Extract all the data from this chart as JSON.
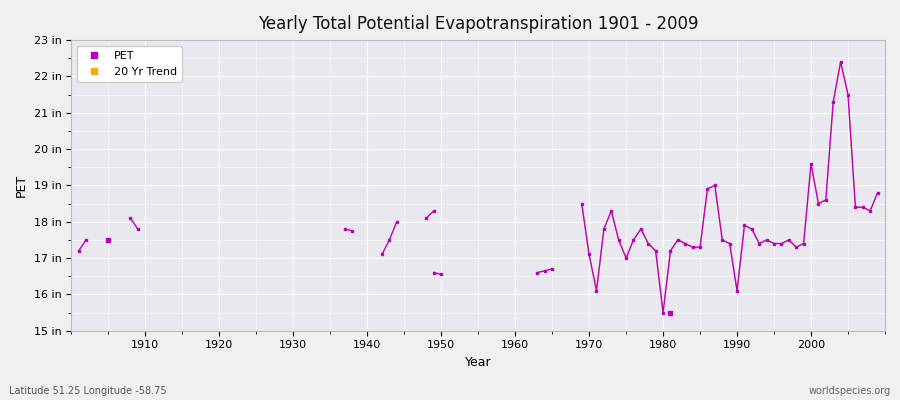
{
  "title": "Yearly Total Potential Evapotranspiration 1901 - 2009",
  "xlabel": "Year",
  "ylabel": "PET",
  "subtitle_left": "Latitude 51.25 Longitude -58.75",
  "subtitle_right": "worldspecies.org",
  "bg_color": "#f0f0f0",
  "plot_bg_color": "#e8e8ee",
  "grid_color": "#ffffff",
  "pet_color": "#bb00bb",
  "trend_color": "#ffaa00",
  "ylim": [
    15,
    23
  ],
  "ytick_labels": [
    "15 in",
    "16 in",
    "17 in",
    "18 in",
    "19 in",
    "20 in",
    "21 in",
    "22 in",
    "23 in"
  ],
  "ytick_values": [
    15,
    16,
    17,
    18,
    19,
    20,
    21,
    22,
    23
  ],
  "xlim": [
    1900,
    2010
  ],
  "xtick_values": [
    1910,
    1920,
    1930,
    1940,
    1950,
    1960,
    1970,
    1980,
    1990,
    2000
  ],
  "segments": [
    {
      "years": [
        1901,
        1902
      ],
      "values": [
        17.2,
        17.5
      ]
    },
    {
      "years": [
        1905
      ],
      "values": [
        17.5
      ]
    },
    {
      "years": [
        1908,
        1909
      ],
      "values": [
        18.1,
        17.8
      ]
    },
    {
      "years": [
        1937,
        1938
      ],
      "values": [
        17.8,
        17.75
      ]
    },
    {
      "years": [
        1942,
        1943,
        1944
      ],
      "values": [
        17.1,
        17.5,
        18.0
      ]
    },
    {
      "years": [
        1948,
        1949
      ],
      "values": [
        18.1,
        18.3
      ]
    },
    {
      "years": [
        1949,
        1950
      ],
      "values": [
        16.6,
        16.55
      ]
    },
    {
      "years": [
        1963,
        1964,
        1965
      ],
      "values": [
        16.6,
        16.65,
        16.7
      ]
    },
    {
      "years": [
        1969,
        1970,
        1971,
        1972,
        1973,
        1974,
        1975,
        1976,
        1977,
        1978,
        1979,
        1980,
        1981,
        1982,
        1983,
        1984,
        1985,
        1986,
        1987,
        1988,
        1989,
        1990,
        1991,
        1992,
        1993,
        1994,
        1995,
        1996,
        1997,
        1998,
        1999,
        2000,
        2001,
        2002,
        2003,
        2004,
        2005,
        2006,
        2007,
        2008,
        2009
      ],
      "values": [
        18.5,
        17.1,
        16.1,
        17.8,
        18.3,
        17.5,
        17.0,
        17.5,
        17.8,
        17.4,
        17.2,
        15.5,
        17.2,
        17.5,
        17.4,
        17.3,
        17.3,
        18.9,
        19.0,
        17.5,
        17.4,
        16.1,
        17.9,
        17.8,
        17.4,
        17.5,
        17.4,
        17.4,
        17.5,
        17.3,
        17.4,
        19.6,
        18.5,
        18.6,
        21.3,
        22.4,
        21.5,
        18.4,
        18.4,
        18.3,
        18.8
      ]
    }
  ],
  "isolated_points": [
    {
      "year": 1981,
      "value": 15.5
    }
  ]
}
